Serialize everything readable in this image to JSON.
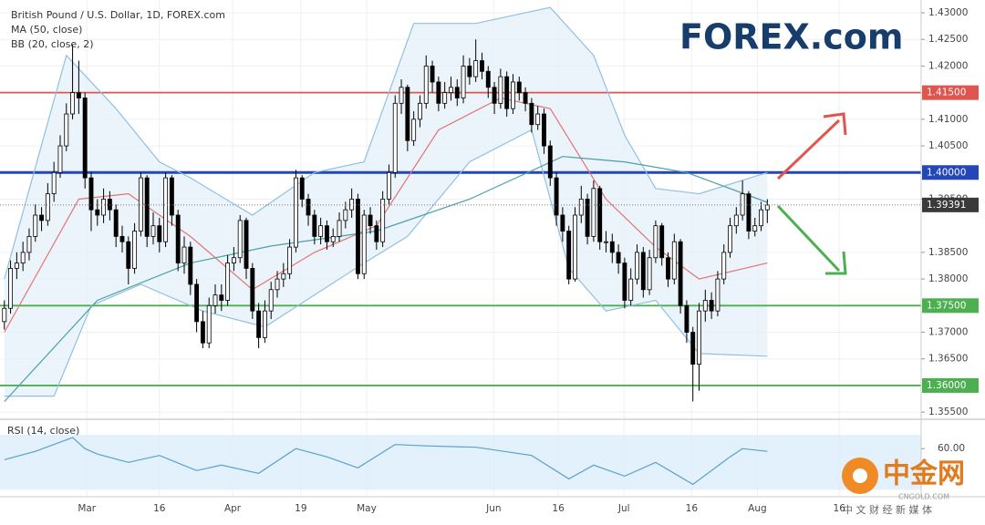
{
  "chart_data": {
    "type": "candlestick",
    "title": "British Pound / U.S. Dollar, 1D, FOREX.com",
    "indicator_labels": [
      "MA (50, close)",
      "BB (20, close, 2)"
    ],
    "up_color": "#ffffff",
    "down_color": "#000000",
    "xlim": [
      -0.7,
      147.8
    ],
    "xticks": [
      {
        "value": 13.3,
        "label": "Mar"
      },
      {
        "value": 25.0,
        "label": "16"
      },
      {
        "value": 36.8,
        "label": "Apr"
      },
      {
        "value": 47.8,
        "label": "19"
      },
      {
        "value": 58.4,
        "label": "May"
      },
      {
        "value": 78.9,
        "label": "Jun"
      },
      {
        "value": 89.3,
        "label": "16"
      },
      {
        "value": 99.9,
        "label": "Jul"
      },
      {
        "value": 110.8,
        "label": "16"
      },
      {
        "value": 121.4,
        "label": "Aug"
      },
      {
        "value": 134.6,
        "label": "16"
      }
    ],
    "ylim": [
      1.354,
      1.4324
    ],
    "yticks": [
      {
        "value": 1.43,
        "label": "1.43000"
      },
      {
        "value": 1.425,
        "label": "1.42500"
      },
      {
        "value": 1.42,
        "label": "1.42000"
      },
      {
        "value": 1.41,
        "label": "1.41000"
      },
      {
        "value": 1.405,
        "label": "1.40500"
      },
      {
        "value": 1.395,
        "label": "1.39500"
      },
      {
        "value": 1.385,
        "label": "1.38500"
      },
      {
        "value": 1.38,
        "label": "1.38000"
      },
      {
        "value": 1.37,
        "label": "1.37000"
      },
      {
        "value": 1.365,
        "label": "1.36500"
      },
      {
        "value": 1.355,
        "label": "1.35500"
      }
    ],
    "grid": true,
    "candles": [
      [
        1.372,
        1.376,
        1.3705,
        1.3745
      ],
      [
        1.3745,
        1.3835,
        1.3735,
        1.382
      ],
      [
        1.382,
        1.385,
        1.38,
        1.383
      ],
      [
        1.383,
        1.387,
        1.3815,
        1.385
      ],
      [
        1.385,
        1.3895,
        1.3835,
        1.388
      ],
      [
        1.388,
        1.394,
        1.387,
        1.392
      ],
      [
        1.392,
        1.3935,
        1.389,
        1.391
      ],
      [
        1.391,
        1.398,
        1.39,
        1.396
      ],
      [
        1.396,
        1.402,
        1.3945,
        1.4
      ],
      [
        1.4,
        1.407,
        1.399,
        1.405
      ],
      [
        1.405,
        1.413,
        1.404,
        1.411
      ],
      [
        1.411,
        1.424,
        1.41,
        1.415
      ],
      [
        1.415,
        1.421,
        1.411,
        1.414
      ],
      [
        1.414,
        1.415,
        1.397,
        1.399
      ],
      [
        1.399,
        1.4,
        1.389,
        1.393
      ],
      [
        1.393,
        1.395,
        1.39,
        1.392
      ],
      [
        1.392,
        1.397,
        1.3905,
        1.395
      ],
      [
        1.395,
        1.3965,
        1.391,
        1.393
      ],
      [
        1.393,
        1.394,
        1.386,
        1.388
      ],
      [
        1.388,
        1.39,
        1.385,
        1.387
      ],
      [
        1.387,
        1.388,
        1.379,
        1.382
      ],
      [
        1.382,
        1.3905,
        1.381,
        1.389
      ],
      [
        1.389,
        1.4,
        1.388,
        1.399
      ],
      [
        1.399,
        1.3995,
        1.386,
        1.388
      ],
      [
        1.388,
        1.3925,
        1.3865,
        1.39
      ],
      [
        1.39,
        1.3915,
        1.385,
        1.387
      ],
      [
        1.387,
        1.4,
        1.386,
        1.399
      ],
      [
        1.399,
        1.3995,
        1.39,
        1.392
      ],
      [
        1.392,
        1.393,
        1.3815,
        1.383
      ],
      [
        1.383,
        1.388,
        1.381,
        1.386
      ],
      [
        1.386,
        1.387,
        1.377,
        1.379
      ],
      [
        1.379,
        1.38,
        1.37,
        1.372
      ],
      [
        1.372,
        1.374,
        1.367,
        1.368
      ],
      [
        1.368,
        1.3765,
        1.367,
        1.375
      ],
      [
        1.375,
        1.379,
        1.3735,
        1.377
      ],
      [
        1.377,
        1.379,
        1.374,
        1.376
      ],
      [
        1.376,
        1.3845,
        1.375,
        1.383
      ],
      [
        1.383,
        1.386,
        1.3815,
        1.384
      ],
      [
        1.384,
        1.392,
        1.383,
        1.391
      ],
      [
        1.391,
        1.3915,
        1.38,
        1.382
      ],
      [
        1.382,
        1.383,
        1.3725,
        1.374
      ],
      [
        1.374,
        1.3755,
        1.367,
        1.369
      ],
      [
        1.369,
        1.376,
        1.368,
        1.374
      ],
      [
        1.374,
        1.3795,
        1.3725,
        1.378
      ],
      [
        1.378,
        1.3815,
        1.3765,
        1.38
      ],
      [
        1.38,
        1.383,
        1.3785,
        1.381
      ],
      [
        1.381,
        1.3875,
        1.38,
        1.386
      ],
      [
        1.386,
        1.4005,
        1.385,
        1.399
      ],
      [
        1.399,
        1.3995,
        1.3935,
        1.395
      ],
      [
        1.395,
        1.396,
        1.39,
        1.392
      ],
      [
        1.392,
        1.393,
        1.3865,
        1.388
      ],
      [
        1.388,
        1.3915,
        1.3865,
        1.39
      ],
      [
        1.39,
        1.391,
        1.3855,
        1.387
      ],
      [
        1.387,
        1.3895,
        1.386,
        1.388
      ],
      [
        1.388,
        1.3925,
        1.387,
        1.391
      ],
      [
        1.391,
        1.3945,
        1.3895,
        1.393
      ],
      [
        1.393,
        1.397,
        1.3915,
        1.395
      ],
      [
        1.395,
        1.396,
        1.38,
        1.381
      ],
      [
        1.381,
        1.393,
        1.38,
        1.392
      ],
      [
        1.392,
        1.3935,
        1.3885,
        1.39
      ],
      [
        1.39,
        1.391,
        1.3855,
        1.387
      ],
      [
        1.387,
        1.3965,
        1.386,
        1.395
      ],
      [
        1.395,
        1.4015,
        1.394,
        1.4
      ],
      [
        1.4,
        1.4145,
        1.399,
        1.413
      ],
      [
        1.413,
        1.4175,
        1.411,
        1.416
      ],
      [
        1.416,
        1.4165,
        1.404,
        1.406
      ],
      [
        1.406,
        1.4115,
        1.405,
        1.41
      ],
      [
        1.41,
        1.4145,
        1.4085,
        1.413
      ],
      [
        1.413,
        1.422,
        1.412,
        1.42
      ],
      [
        1.42,
        1.421,
        1.415,
        1.417
      ],
      [
        1.417,
        1.418,
        1.4115,
        1.413
      ],
      [
        1.413,
        1.417,
        1.412,
        1.415
      ],
      [
        1.415,
        1.418,
        1.4135,
        1.416
      ],
      [
        1.416,
        1.4175,
        1.4125,
        1.414
      ],
      [
        1.414,
        1.422,
        1.413,
        1.42
      ],
      [
        1.42,
        1.4215,
        1.4165,
        1.418
      ],
      [
        1.418,
        1.425,
        1.417,
        1.421
      ],
      [
        1.421,
        1.4225,
        1.4175,
        1.419
      ],
      [
        1.419,
        1.42,
        1.414,
        1.416
      ],
      [
        1.416,
        1.417,
        1.411,
        1.413
      ],
      [
        1.413,
        1.4195,
        1.412,
        1.418
      ],
      [
        1.418,
        1.419,
        1.4105,
        1.412
      ],
      [
        1.412,
        1.4185,
        1.411,
        1.417
      ],
      [
        1.417,
        1.418,
        1.4135,
        1.415
      ],
      [
        1.415,
        1.416,
        1.4115,
        1.413
      ],
      [
        1.413,
        1.414,
        1.4075,
        1.409
      ],
      [
        1.409,
        1.4125,
        1.408,
        1.411
      ],
      [
        1.411,
        1.412,
        1.4035,
        1.405
      ],
      [
        1.405,
        1.406,
        1.3975,
        1.399
      ],
      [
        1.399,
        1.4,
        1.39,
        1.392
      ],
      [
        1.392,
        1.3935,
        1.387,
        1.389
      ],
      [
        1.389,
        1.39,
        1.379,
        1.38
      ],
      [
        1.38,
        1.3935,
        1.3795,
        1.392
      ],
      [
        1.392,
        1.3975,
        1.3905,
        1.395
      ],
      [
        1.395,
        1.396,
        1.3865,
        1.388
      ],
      [
        1.388,
        1.3985,
        1.387,
        1.397
      ],
      [
        1.397,
        1.3975,
        1.3855,
        1.387
      ],
      [
        1.387,
        1.389,
        1.385,
        1.387
      ],
      [
        1.387,
        1.3885,
        1.383,
        1.385
      ],
      [
        1.385,
        1.3865,
        1.381,
        1.383
      ],
      [
        1.383,
        1.384,
        1.3745,
        1.376
      ],
      [
        1.376,
        1.382,
        1.375,
        1.38
      ],
      [
        1.38,
        1.3865,
        1.379,
        1.385
      ],
      [
        1.385,
        1.386,
        1.3765,
        1.378
      ],
      [
        1.378,
        1.3855,
        1.377,
        1.384
      ],
      [
        1.384,
        1.391,
        1.383,
        1.39
      ],
      [
        1.39,
        1.3905,
        1.3825,
        1.384
      ],
      [
        1.384,
        1.385,
        1.3785,
        1.38
      ],
      [
        1.38,
        1.3885,
        1.379,
        1.387
      ],
      [
        1.387,
        1.3875,
        1.3735,
        1.375
      ],
      [
        1.375,
        1.376,
        1.368,
        1.37
      ],
      [
        1.37,
        1.371,
        1.357,
        1.364
      ],
      [
        1.364,
        1.3755,
        1.359,
        1.374
      ],
      [
        1.374,
        1.378,
        1.372,
        1.376
      ],
      [
        1.376,
        1.3775,
        1.3725,
        1.374
      ],
      [
        1.374,
        1.3815,
        1.373,
        1.38
      ],
      [
        1.38,
        1.3865,
        1.379,
        1.385
      ],
      [
        1.385,
        1.3915,
        1.384,
        1.39
      ],
      [
        1.39,
        1.3935,
        1.3885,
        1.392
      ],
      [
        1.392,
        1.3985,
        1.391,
        1.396
      ],
      [
        1.396,
        1.3965,
        1.3875,
        1.389
      ],
      [
        1.389,
        1.3915,
        1.388,
        1.39
      ],
      [
        1.39,
        1.3945,
        1.389,
        1.393
      ],
      [
        1.393,
        1.395,
        1.3905,
        1.3939
      ]
    ],
    "overlays": [
      {
        "name": "BB upper",
        "color": "#90c0e0",
        "x": [
          0,
          10,
          18,
          25,
          30,
          40,
          50,
          58,
          66,
          76,
          88,
          95,
          100,
          105,
          112,
          123
        ],
        "values": [
          1.38,
          1.422,
          1.412,
          1.402,
          1.399,
          1.392,
          1.4,
          1.402,
          1.428,
          1.428,
          1.431,
          1.422,
          1.407,
          1.397,
          1.396,
          1.4
        ]
      },
      {
        "name": "BB lower",
        "color": "#90c0e0",
        "x": [
          0,
          8,
          14,
          22,
          32,
          42,
          50,
          58,
          65,
          75,
          85,
          91,
          97,
          105,
          112,
          123
        ],
        "values": [
          1.358,
          1.358,
          1.375,
          1.379,
          1.374,
          1.371,
          1.377,
          1.383,
          1.388,
          1.402,
          1.408,
          1.382,
          1.374,
          1.376,
          1.366,
          1.3655
        ]
      },
      {
        "name": "BB basis",
        "color": "#e57373",
        "x": [
          0,
          12,
          20,
          30,
          40,
          50,
          60,
          70,
          80,
          88,
          97,
          105,
          112,
          123
        ],
        "values": [
          1.37,
          1.395,
          1.396,
          1.388,
          1.378,
          1.385,
          1.39,
          1.408,
          1.414,
          1.412,
          1.395,
          1.386,
          1.38,
          1.383
        ]
      },
      {
        "name": "MA 50",
        "color": "#4a9fa8",
        "x": [
          0,
          15,
          30,
          43,
          60,
          75,
          90,
          100,
          110,
          123
        ],
        "values": [
          1.357,
          1.376,
          1.383,
          1.3862,
          1.389,
          1.395,
          1.403,
          1.402,
          1.4,
          1.3944
        ]
      }
    ],
    "levels": [
      {
        "value": 1.415,
        "label": "1.41500",
        "color": "#e0554e"
      },
      {
        "value": 1.4,
        "label": "1.40000",
        "color": "#2346b8"
      },
      {
        "value": 1.375,
        "label": "1.37500",
        "color": "#4caf50"
      },
      {
        "value": 1.36,
        "label": "1.36000",
        "color": "#4caf50"
      }
    ],
    "last_price": {
      "value": 1.39391,
      "label": "1.39391"
    },
    "rsi": {
      "title": "RSI (14, close)",
      "color": "#5a9fd0",
      "ylim": [
        25,
        80
      ],
      "band": [
        30,
        70
      ],
      "yticks": [
        {
          "value": 60,
          "label": "60.00"
        }
      ],
      "x": [
        0,
        5,
        11,
        13,
        15,
        20,
        25,
        31,
        35,
        41,
        47,
        52,
        57,
        63,
        68,
        76,
        85,
        91,
        95,
        100,
        105,
        111,
        117,
        119,
        123
      ],
      "values": [
        52,
        58,
        68,
        60,
        56,
        50,
        55,
        44,
        48,
        42,
        60,
        54,
        46,
        63,
        62,
        61,
        55,
        38,
        48,
        40,
        50,
        34,
        54,
        60,
        58
      ]
    }
  },
  "logo": "FOREX.com",
  "watermark": {
    "name": "中金网",
    "site": "CNGOLD.COM",
    "slogan": "中 文 财 经 新 媒 体"
  }
}
